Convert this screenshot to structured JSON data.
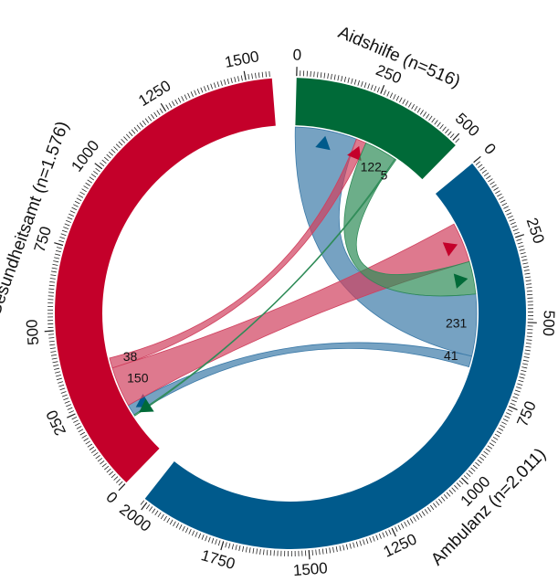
{
  "chart_data": {
    "type": "chord",
    "groups": [
      {
        "label": "Aidshilfe (n=516)",
        "value": 516,
        "color": "#006a38",
        "chord_color": "#2e8b57",
        "ticks": [
          0,
          250,
          500
        ]
      },
      {
        "label": "Ambulanz (n=2.011)",
        "value": 2011,
        "color": "#005a8c",
        "chord_color": "#3c7aa8",
        "ticks": [
          0,
          250,
          500,
          750,
          1000,
          1250,
          1500,
          1750,
          2000
        ]
      },
      {
        "label": "Gesundheitsamt (n=1.576)",
        "value": 1576,
        "color": "#c4002a",
        "chord_color": "#d0405e",
        "ticks": [
          0,
          250,
          500,
          750,
          1000,
          1250,
          1500
        ]
      }
    ],
    "minor_tick_step": 10,
    "chords": [
      {
        "source": 1,
        "target": 0,
        "value": 231
      },
      {
        "source": 1,
        "target": 2,
        "value": 41
      },
      {
        "source": 2,
        "target": 1,
        "value": 150
      },
      {
        "source": 2,
        "target": 0,
        "value": 38
      },
      {
        "source": 0,
        "target": 1,
        "value": 122
      },
      {
        "source": 0,
        "target": 2,
        "value": 5
      }
    ]
  }
}
